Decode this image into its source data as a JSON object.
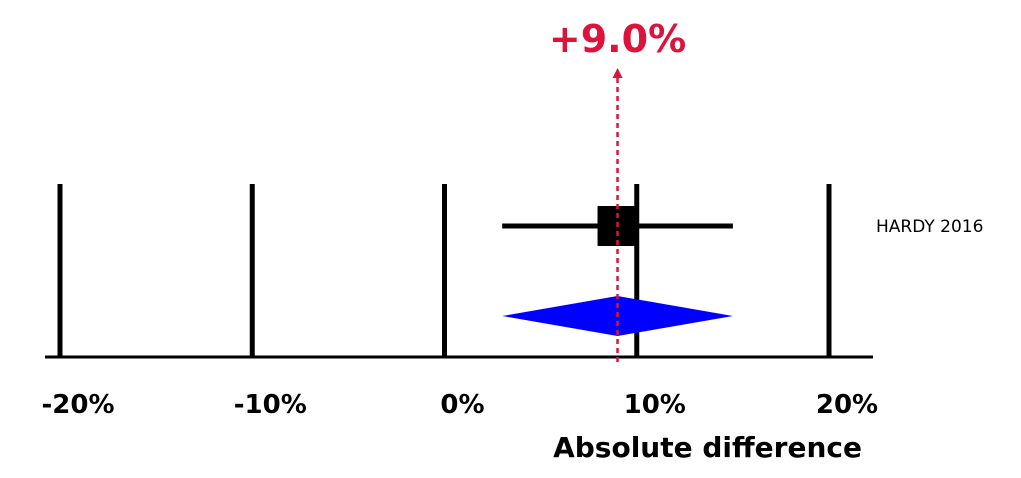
{
  "chart_data": {
    "type": "forest",
    "xlabel": "Absolute difference",
    "xlim": [
      -20,
      20
    ],
    "ticks": [
      -20,
      -10,
      0,
      10,
      20
    ],
    "tick_labels": [
      "-20%",
      "-10%",
      "0%",
      "10%",
      "20%"
    ],
    "studies": [
      {
        "name": "HARDY 2016",
        "estimate": 9.0,
        "ci_low": 3.0,
        "ci_high": 15.0
      }
    ],
    "pooled": {
      "estimate": 9.0,
      "ci_low": 3.0,
      "ci_high": 15.0,
      "label": "+9.0%"
    },
    "colors": {
      "diamond": "#0000ff",
      "pooled_line": "#dc143c",
      "marks": "#000000"
    }
  }
}
